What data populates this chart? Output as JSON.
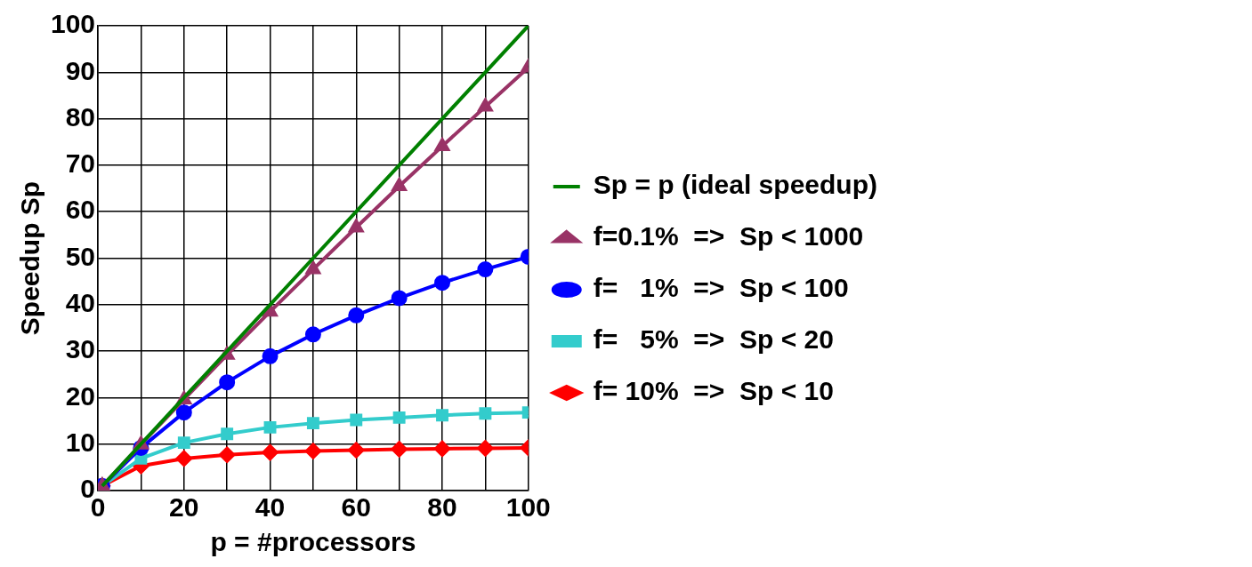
{
  "chart_data": {
    "type": "line",
    "xlabel": "p = #processors",
    "ylabel": "Speedup Sp",
    "x": [
      1,
      10,
      20,
      30,
      40,
      50,
      60,
      70,
      80,
      90,
      100
    ],
    "xlim": [
      0,
      100
    ],
    "xticks": [
      0,
      {
        "value": 10,
        "label": null
      },
      20,
      {
        "value": 30,
        "label": null
      },
      40,
      {
        "value": 50,
        "label": null
      },
      60,
      {
        "value": 70,
        "label": null
      },
      80,
      {
        "value": 90,
        "label": null
      },
      100
    ],
    "ylim": [
      0,
      100
    ],
    "yticks": [
      0,
      10,
      20,
      30,
      40,
      50,
      60,
      70,
      80,
      90,
      100
    ],
    "grid": true,
    "legend": "right",
    "series": [
      {
        "name": "Sp = p (ideal speedup)",
        "color": "#008000",
        "marker": "none",
        "values": [
          1,
          10,
          20,
          30,
          40,
          50,
          60,
          70,
          80,
          90,
          100
        ]
      },
      {
        "name": "f=0.1%  =>  Sp < 1000",
        "color": "#993366",
        "marker": "triangle",
        "values": [
          1,
          9.9,
          19.6,
          29.2,
          38.5,
          47.6,
          56.6,
          65.5,
          74.1,
          82.6,
          91.0
        ]
      },
      {
        "name": "f=   1%  =>  Sp < 100",
        "color": "#0000ff",
        "marker": "circle",
        "values": [
          1,
          9.2,
          16.8,
          23.3,
          28.9,
          33.6,
          37.7,
          41.4,
          44.7,
          47.6,
          50.3
        ]
      },
      {
        "name": "f=   5%  =>  Sp < 20",
        "color": "#33cccc",
        "marker": "square",
        "values": [
          1,
          6.9,
          10.3,
          12.2,
          13.6,
          14.5,
          15.2,
          15.7,
          16.2,
          16.6,
          16.8
        ]
      },
      {
        "name": "f= 10%  =>  Sp < 10",
        "color": "#ff0000",
        "marker": "diamond",
        "values": [
          1,
          5.3,
          6.9,
          7.7,
          8.2,
          8.5,
          8.7,
          8.9,
          9.0,
          9.1,
          9.2
        ]
      }
    ]
  }
}
